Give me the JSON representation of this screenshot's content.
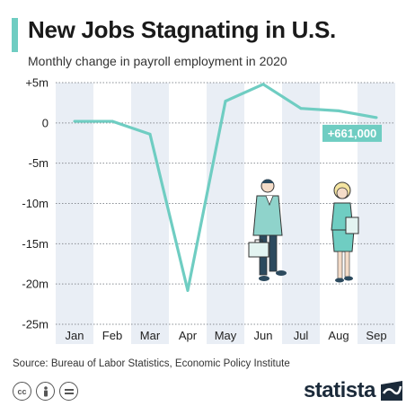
{
  "header": {
    "title": "New Jobs Stagnating in U.S.",
    "subtitle": "Monthly change in payroll employment in 2020"
  },
  "colors": {
    "accent": "#6fcdc2",
    "line": "#6fcdc2",
    "band": "#e9eef5",
    "grid": "#8a8f95"
  },
  "chart_data": {
    "type": "line",
    "title": "New Jobs Stagnating in U.S.",
    "subtitle": "Monthly change in payroll employment in 2020",
    "categories": [
      "Jan",
      "Feb",
      "Mar",
      "Apr",
      "May",
      "Jun",
      "Jul",
      "Aug",
      "Sep"
    ],
    "series": [
      {
        "values": [
          0.2,
          0.2,
          -1.4,
          -20.8,
          2.7,
          4.8,
          1.8,
          1.5,
          0.661
        ]
      }
    ],
    "y_ticks": [
      "+5m",
      "0",
      "-5m",
      "-10m",
      "-15m",
      "-20m",
      "-25m"
    ],
    "ylim": [
      -25,
      5
    ],
    "grid": true,
    "annotation": {
      "text": "+661,000",
      "category": "Sep"
    }
  },
  "footer": {
    "source": "Source: Bureau of Labor Statistics, Economic Policy Institute",
    "license_icons": [
      "cc-icon",
      "attribution-icon",
      "no-derivatives-icon"
    ],
    "brand": "statista"
  }
}
